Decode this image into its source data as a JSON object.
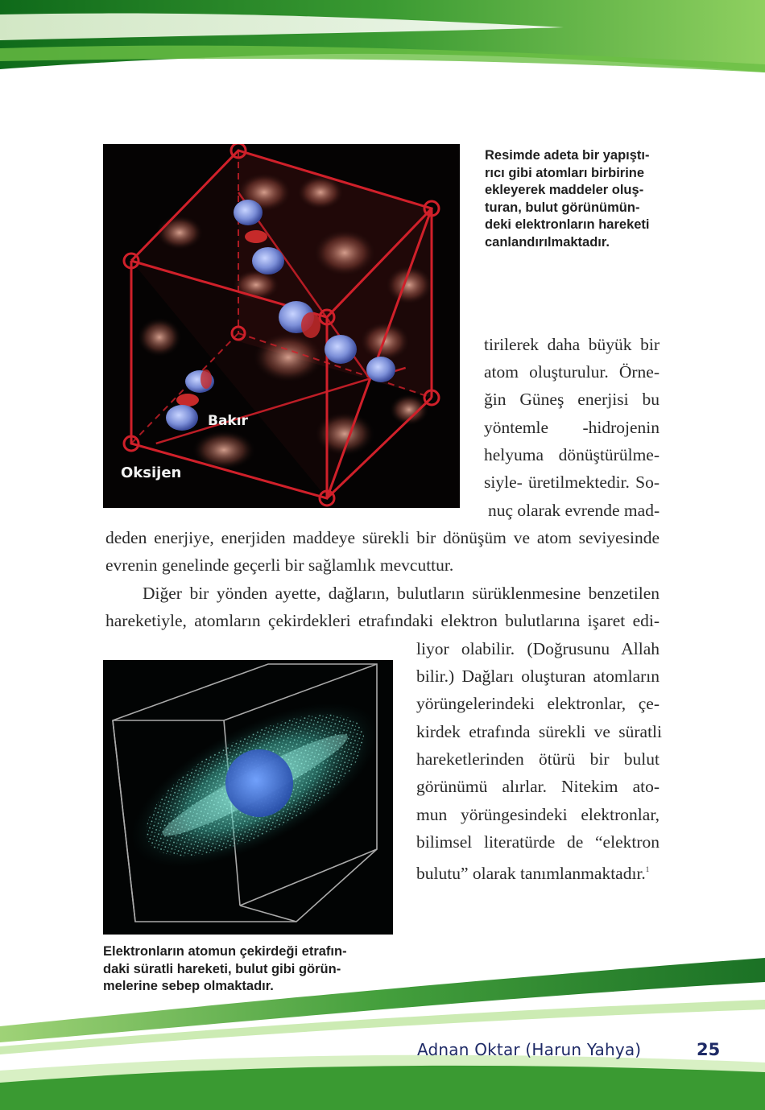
{
  "figure1": {
    "labels": {
      "bakir": "Bakır",
      "oksijen": "Oksijen"
    },
    "caption_lines": [
      "Resimde adeta bir yapıştı-",
      "rıcı gibi atomları birbirine",
      "ekleyerek maddeler oluş-",
      "turan, bulut görünümün-",
      "deki elektronların hareketi",
      "canlandırılmaktadır."
    ]
  },
  "body": {
    "col_lines": [
      "tirilerek daha büyük bir",
      "atom oluşturulur. Örne-",
      "ğin Güneş enerjisi bu",
      "yöntemle -hidrojenin",
      "helyuma dönüştürülme-",
      "siyle- üretilmektedir. So-",
      "nuç olarak evrende mad-"
    ],
    "full_lines": [
      "deden enerjiye, enerjiden maddeye sürekli bir dönüşüm ve atom seviyesinde",
      "evrenin genelinde geçerli bir sağlamlık mevcuttur."
    ],
    "para2_lines": [
      "Diğer bir yönden ayette, dağların, bulutların sürüklenmesine benzetilen",
      "hareketiyle, atomların çekirdekleri etrafındaki elektron bulutlarına işaret edi-"
    ],
    "right_lines": [
      "liyor olabilir. (Doğrusunu Allah",
      "bilir.) Dağları oluşturan atomların",
      "yörüngelerindeki elektronlar, çe-",
      "kirdek etrafında sürekli ve süratli",
      "hareketlerinden ötürü bir bulut",
      "görünümü alırlar. Nitekim ato-",
      "mun yörüngesindeki elektronlar,",
      "bilimsel literatürde de “elektron"
    ],
    "last_line": "bulutu” olarak tanımlanmaktadır.",
    "footnote_mark": "1"
  },
  "figure2": {
    "caption_lines": [
      "Elektronların atomun çekirdeği etrafın-",
      "daki süratli hareketi, bulut gibi görün-",
      "melerine sebep olmaktadır."
    ]
  },
  "footer": {
    "author": "Adnan Oktar (Harun Yahya)",
    "page_number": "25"
  },
  "colors": {
    "header_green": "#2f8f2a",
    "footer_text": "#1e2a66",
    "cube_red": "#d0202a",
    "cloud_teal": "#5fd0c0",
    "nucleus_blue": "#3f6fd8"
  }
}
